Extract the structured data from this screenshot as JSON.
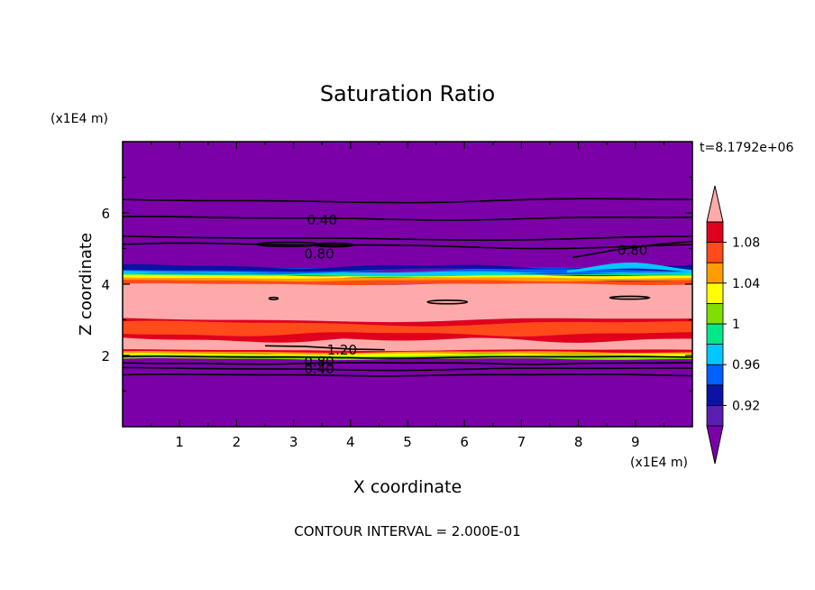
{
  "chart_data": {
    "type": "contour",
    "title": "Saturation Ratio",
    "xlabel": "X coordinate",
    "ylabel": "Z coordinate",
    "x_unit": "(x1E4 m)",
    "y_unit": "(x1E4 m)",
    "time_label": "t=8.1792e+06",
    "footer": "CONTOUR INTERVAL = 2.000E-01",
    "xlim": [
      0,
      10
    ],
    "ylim": [
      0,
      8
    ],
    "x_ticks": [
      "1",
      "2",
      "3",
      "4",
      "5",
      "6",
      "7",
      "8",
      "9"
    ],
    "y_ticks": [
      "2",
      "4",
      "6"
    ],
    "contour_labels": [
      "0.40",
      "0.80",
      "0.80",
      "1.20",
      "0.80",
      "0.40"
    ],
    "colorbar": {
      "labels": [
        "1.08",
        "1.04",
        "1",
        "0.96",
        "0.92"
      ],
      "levels": [
        0.9,
        0.92,
        0.94,
        0.96,
        0.98,
        1.0,
        1.02,
        1.04,
        1.06,
        1.08,
        1.1
      ],
      "colors": [
        "#7b00a8",
        "#5a1fb0",
        "#0a13a3",
        "#0061ff",
        "#00c8ff",
        "#00e887",
        "#7fe000",
        "#ffff00",
        "#ff9d00",
        "#ff4a1a",
        "#e0001e",
        "#ffaaaa"
      ]
    },
    "bands": [
      {
        "z0": 0.0,
        "z1": 1.9,
        "value": "<0.90"
      },
      {
        "z0": 1.9,
        "z1": 2.05,
        "value": "0.98-1.04"
      },
      {
        "z0": 2.05,
        "z1": 2.15,
        "value": "1.08"
      },
      {
        "z0": 2.15,
        "z1": 2.5,
        "value": ">1.10"
      },
      {
        "z0": 2.5,
        "z1": 3.0,
        "value": "1.08-1.10"
      },
      {
        "z0": 3.0,
        "z1": 4.0,
        "value": ">1.10"
      },
      {
        "z0": 4.0,
        "z1": 4.25,
        "value": "1.04-1.08"
      },
      {
        "z0": 4.25,
        "z1": 4.4,
        "value": "0.92-1.02"
      },
      {
        "z0": 4.4,
        "z1": 8.0,
        "value": "<0.90"
      }
    ]
  }
}
